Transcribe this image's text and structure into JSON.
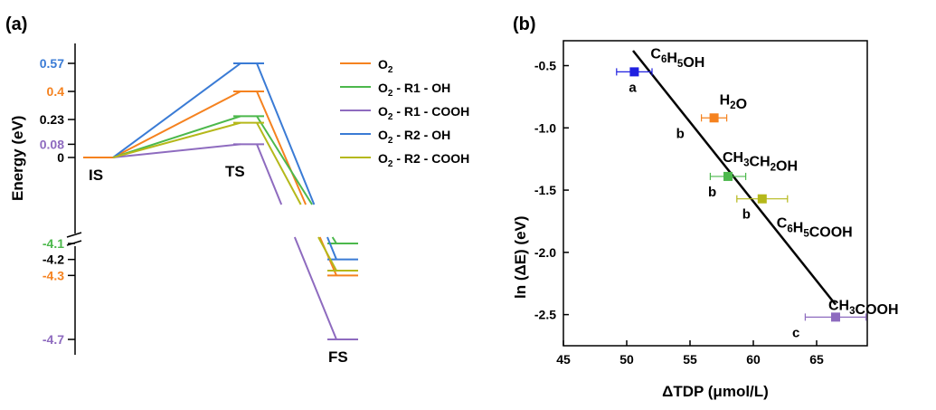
{
  "panel_labels": {
    "a": "(a)",
    "b": "(b)"
  },
  "colors": {
    "O2": "#f5821f",
    "O2_R1_OH": "#4cb84c",
    "O2_R1_COOH": "#8e6bbf",
    "O2_R2_OH": "#3a7bd5",
    "O2_R2_COOH": "#b5b81a",
    "black": "#000000"
  },
  "chart_data": [
    {
      "type": "line",
      "panel": "(a)",
      "ylabel": "Energy (eV)",
      "ytick_labels": [
        {
          "label": "0.57",
          "value": 0.57,
          "color": "#3a7bd5"
        },
        {
          "label": "0.4",
          "value": 0.4,
          "color": "#f5821f"
        },
        {
          "label": "0.23",
          "value": 0.23,
          "color": "#000000"
        },
        {
          "label": "0.08",
          "value": 0.08,
          "color": "#8e6bbf"
        },
        {
          "label": "0",
          "value": 0,
          "color": "#000000"
        },
        {
          "label": "-4.1",
          "value": -4.1,
          "color": "#4cb84c"
        },
        {
          "label": "-4.2",
          "value": -4.2,
          "color": "#000000"
        },
        {
          "label": "-4.3",
          "value": -4.3,
          "color": "#f5821f"
        },
        {
          "label": "-4.7",
          "value": -4.7,
          "color": "#8e6bbf"
        }
      ],
      "axis_break": true,
      "stages": [
        "IS",
        "TS",
        "FS"
      ],
      "legend": [
        {
          "name": "O2",
          "sub": "2",
          "text": " - R1 - OH"
        }
      ],
      "series": [
        {
          "name": "O₂",
          "key": "O2",
          "color": "#f5821f",
          "values": [
            0,
            0.4,
            -4.3
          ]
        },
        {
          "name": "O₂ - R1 - OH",
          "key": "O2_R1_OH",
          "color": "#4cb84c",
          "values": [
            0,
            0.25,
            -4.1
          ]
        },
        {
          "name": "O₂ - R1 - COOH",
          "key": "O2_R1_COOH",
          "color": "#8e6bbf",
          "values": [
            0,
            0.08,
            -4.7
          ]
        },
        {
          "name": "O₂ - R2 - OH",
          "key": "O2_R2_OH",
          "color": "#3a7bd5",
          "values": [
            0,
            0.57,
            -4.2
          ]
        },
        {
          "name": "O₂ - R2 - COOH",
          "key": "O2_R2_COOH",
          "color": "#b5b81a",
          "values": [
            0,
            0.21,
            -4.27
          ]
        }
      ]
    },
    {
      "type": "scatter",
      "panel": "(b)",
      "xlabel": "ΔTDP (μmol/L)",
      "ylabel": "ln (ΔE) (eV)",
      "xlim": [
        45,
        69
      ],
      "ylim": [
        -2.75,
        -0.3
      ],
      "xticks": [
        45,
        50,
        55,
        60,
        65
      ],
      "yticks": [
        -0.5,
        -1.0,
        -1.5,
        -2.0,
        -2.5
      ],
      "xtick_labels": [
        "45",
        "50",
        "55",
        "60",
        "65"
      ],
      "ytick_labels": [
        "-0.5",
        "-1.0",
        "-1.5",
        "-2.0",
        "-2.5"
      ],
      "fit_line": {
        "x": [
          50.5,
          66.5
        ],
        "y": [
          -0.38,
          -2.42
        ]
      },
      "points": [
        {
          "molecule": "C6H5OH",
          "x": 50.6,
          "y": -0.55,
          "xerr": 1.4,
          "color": "#1f1fe0",
          "letter": "a"
        },
        {
          "molecule": "H2O",
          "x": 56.9,
          "y": -0.92,
          "xerr": 1.0,
          "color": "#f5821f",
          "letter": "b"
        },
        {
          "molecule": "CH3CH2OH",
          "x": 58.0,
          "y": -1.39,
          "xerr": 1.4,
          "color": "#4cb84c",
          "letter": "b"
        },
        {
          "molecule": "C6H5COOH",
          "x": 60.7,
          "y": -1.57,
          "xerr": 2.0,
          "color": "#b5b81a",
          "letter": "b"
        },
        {
          "molecule": "CH3COOH",
          "x": 66.5,
          "y": -2.52,
          "xerr": 2.4,
          "color": "#8e6bbf",
          "letter": "c"
        }
      ]
    }
  ]
}
